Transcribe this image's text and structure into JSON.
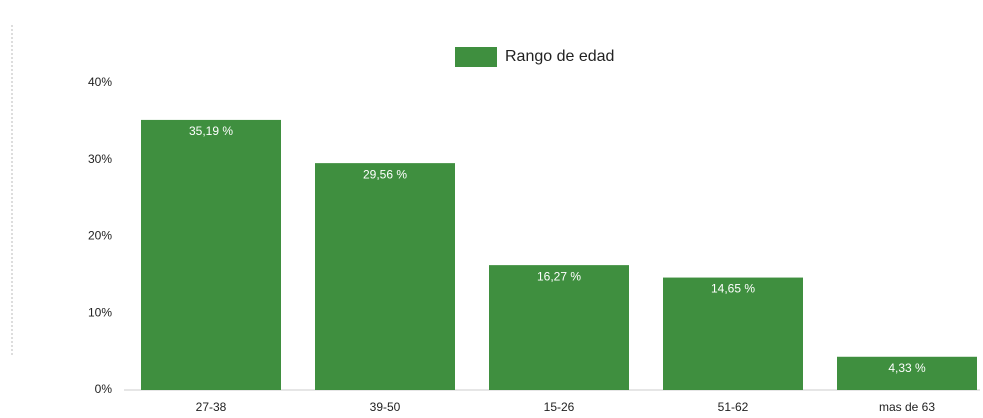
{
  "chart_data": {
    "type": "bar",
    "categories": [
      "27-38",
      "39-50",
      "15-26",
      "51-62",
      "mas de 63"
    ],
    "series": [
      {
        "name": "Rango de edad",
        "color": "#3f8f3f",
        "values": [
          35.19,
          29.56,
          16.27,
          14.65,
          4.33
        ],
        "value_labels": [
          "35,19 %",
          "29,56 %",
          "16,27 %",
          "14,65 %",
          "4,33 %"
        ]
      }
    ],
    "ylim": [
      0,
      40
    ],
    "yticks": [
      {
        "value": 0,
        "label": "0%"
      },
      {
        "value": 10,
        "label": "10%"
      },
      {
        "value": 20,
        "label": "20%"
      },
      {
        "value": 30,
        "label": "30%"
      },
      {
        "value": 40,
        "label": "40%"
      }
    ],
    "legend": "top"
  }
}
